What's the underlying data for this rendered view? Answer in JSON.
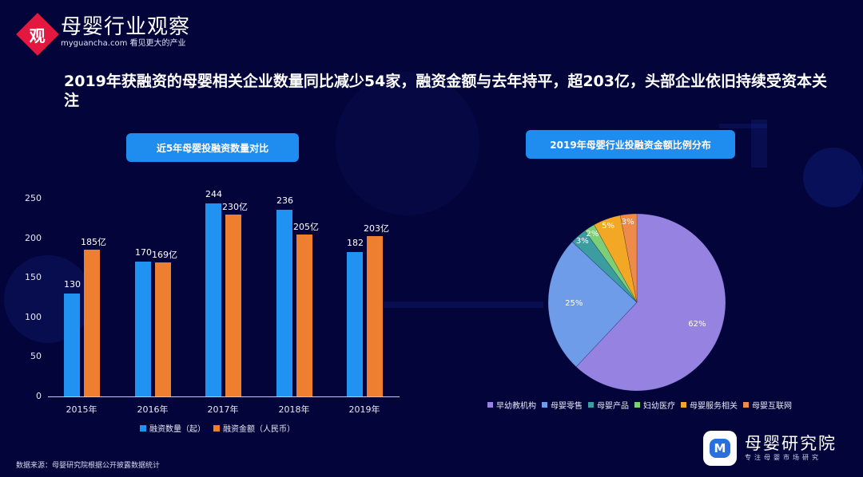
{
  "logo": {
    "icon_char": "观",
    "title": "母婴行业观察",
    "subtitle": "myguancha.com 看见更大的产业"
  },
  "headline": "2019年获融资的母婴相关企业数量同比减少54家，融资金额与去年持平，超203亿，头部企业依旧持续受资本关注",
  "left_chart_tag": "近5年母婴投融资数量对比",
  "right_chart_tag": "2019年母婴行业投融资金额比例分布",
  "source": "数据来源：母婴研究院根据公开披露数据统计",
  "brand": {
    "icon_char": "M",
    "title": "母婴研究院",
    "subtitle": "专注母婴市场研究"
  },
  "colors": {
    "background": "#03043a",
    "tag": "#1f8cf0",
    "count_bar": "#1f92f2",
    "amount_bar": "#ee7f31"
  },
  "chart_data": [
    {
      "type": "bar",
      "title": "近5年母婴投融资数量对比",
      "categories": [
        "2015年",
        "2016年",
        "2017年",
        "2018年",
        "2019年"
      ],
      "series": [
        {
          "name": "融资数量（起）",
          "color": "#1f92f2",
          "values": [
            130,
            170,
            244,
            236,
            182
          ],
          "labels": [
            "130",
            "170",
            "244",
            "236",
            "182"
          ]
        },
        {
          "name": "融资金额（人民币）",
          "color": "#ee7f31",
          "values": [
            185,
            169,
            230,
            205,
            203
          ],
          "labels": [
            "185亿",
            "169亿",
            "230亿",
            "205亿",
            "203亿"
          ]
        }
      ],
      "yticks": [
        "0",
        "50",
        "100",
        "150",
        "200",
        "250"
      ],
      "ylim": [
        0,
        250
      ],
      "xlabel": "",
      "ylabel": "",
      "grid": false,
      "legend_position": "bottom"
    },
    {
      "type": "pie",
      "title": "2019年母婴行业投融资金额比例分布",
      "categories": [
        "早幼教机构",
        "母婴零售",
        "母婴产品",
        "妇幼医疗",
        "母婴服务相关",
        "母婴互联网"
      ],
      "values": [
        62,
        25,
        3,
        2,
        5,
        3
      ],
      "labels": [
        "62%",
        "25%",
        "3%",
        "2%",
        "5%",
        "3%"
      ],
      "colors": [
        "#9682e0",
        "#6e9ce8",
        "#3b9d9f",
        "#7ccf76",
        "#f2a824",
        "#ee8b4a"
      ],
      "legend_position": "bottom"
    }
  ]
}
